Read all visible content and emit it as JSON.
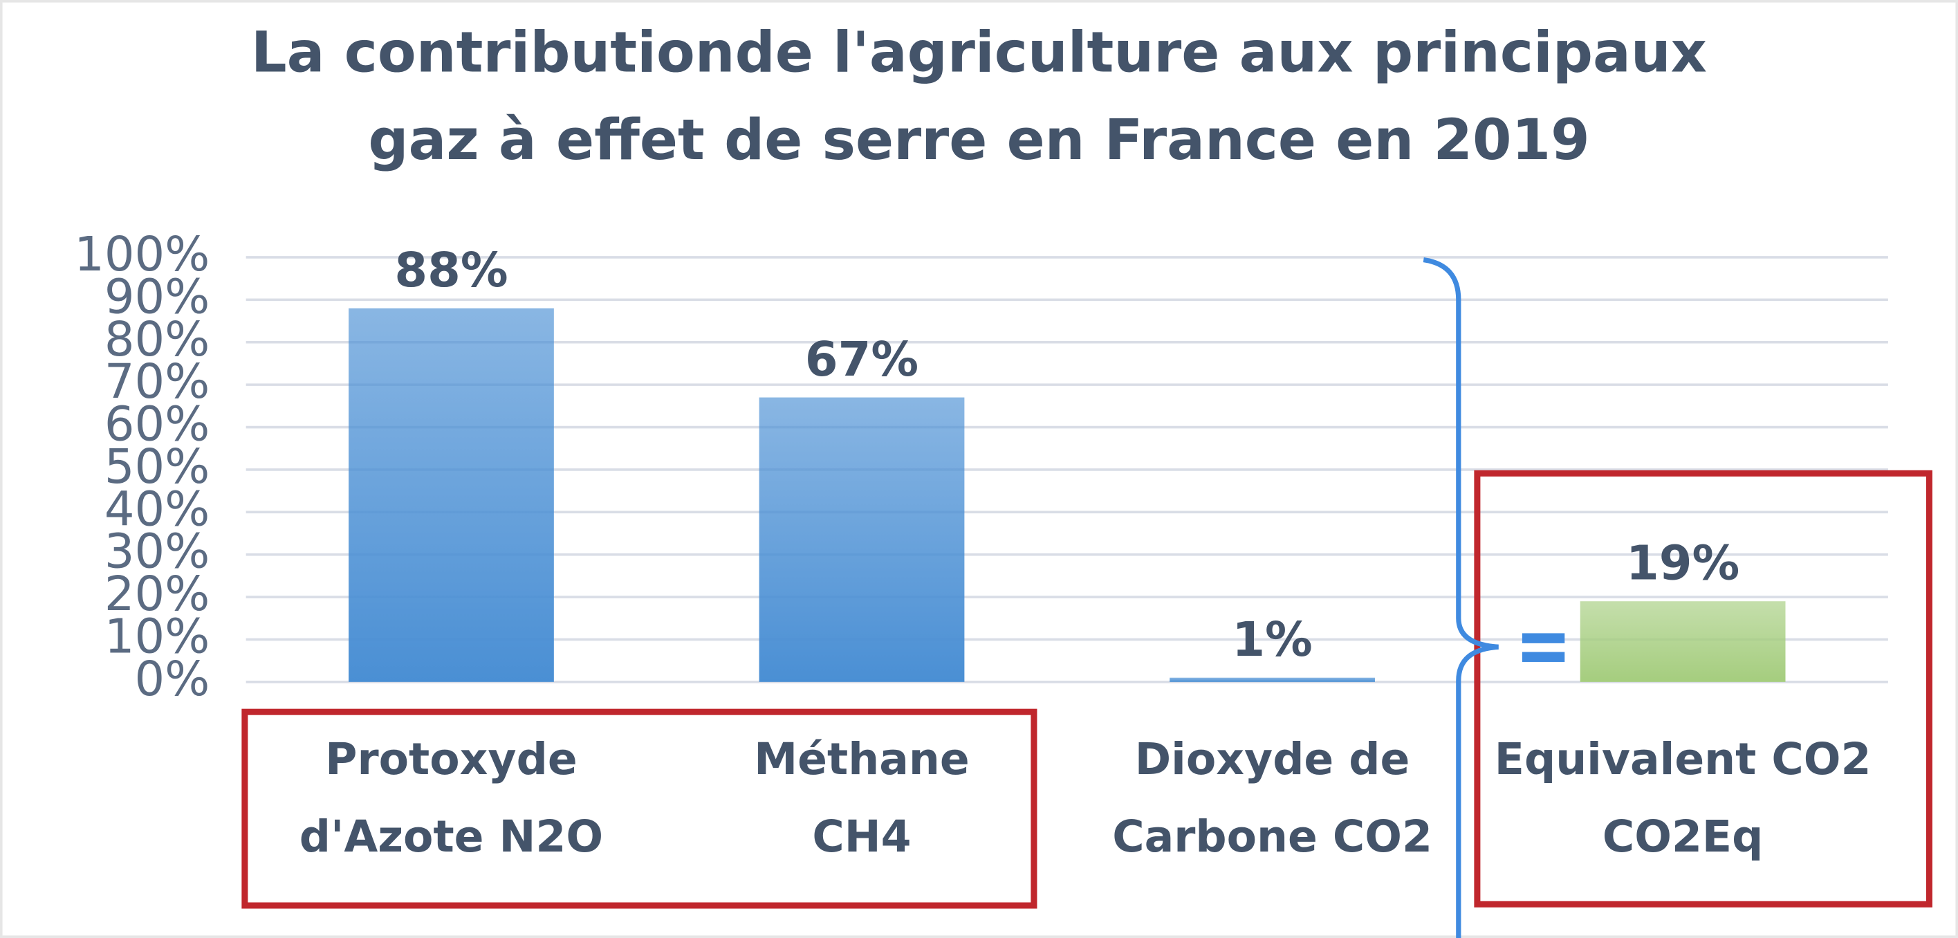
{
  "chart_data": {
    "type": "bar",
    "title": [
      "La contributionde l'agriculture aux principaux",
      "gaz à effet de serre en France en 2019"
    ],
    "categories": [
      [
        "Protoxyde",
        "d'Azote  N2O"
      ],
      [
        "Méthane",
        "CH4"
      ],
      [
        "Dioxyde de",
        "Carbone CO2"
      ],
      [
        "Equivalent CO2",
        "CO2Eq"
      ]
    ],
    "values": [
      88,
      67,
      1,
      19
    ],
    "value_labels": [
      "88%",
      "67%",
      "1%",
      "19%"
    ],
    "colors": [
      "#4a8fd4",
      "#4a8fd4",
      "#4a8fd4",
      "#a5cd7e"
    ],
    "ylim": [
      0,
      100
    ],
    "yticks": [
      {
        "value": 0,
        "label": "0%"
      },
      {
        "value": 10,
        "label": "10%"
      },
      {
        "value": 20,
        "label": "20%"
      },
      {
        "value": 30,
        "label": "30%"
      },
      {
        "value": 40,
        "label": "40%"
      },
      {
        "value": 50,
        "label": "50%"
      },
      {
        "value": 60,
        "label": "60%"
      },
      {
        "value": 70,
        "label": "70%"
      },
      {
        "value": 80,
        "label": "80%"
      },
      {
        "value": 90,
        "label": "90%"
      },
      {
        "value": 100,
        "label": "100%"
      }
    ],
    "grid": true
  }
}
